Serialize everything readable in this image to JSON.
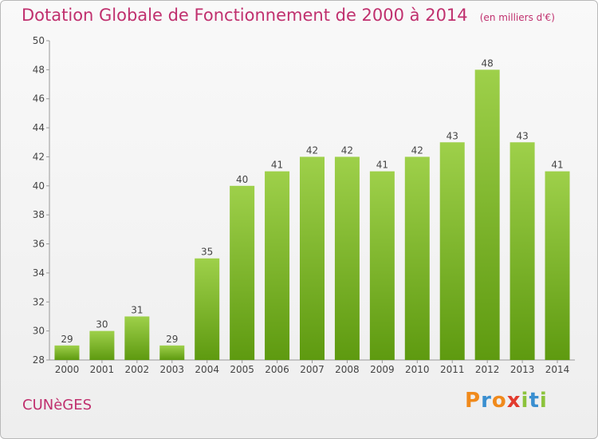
{
  "chart_data": {
    "type": "bar",
    "title": "Dotation Globale de Fonctionnement de 2000 à 2014",
    "unit": "(en milliers d'€)",
    "categories": [
      "2000",
      "2001",
      "2002",
      "2003",
      "2004",
      "2005",
      "2006",
      "2007",
      "2008",
      "2009",
      "2010",
      "2011",
      "2012",
      "2013",
      "2014"
    ],
    "values": [
      29,
      30,
      31,
      29,
      35,
      40,
      41,
      42,
      42,
      41,
      42,
      43,
      48,
      43,
      41
    ],
    "ylim": [
      28,
      50
    ],
    "yticks": [
      28,
      30,
      32,
      34,
      36,
      38,
      40,
      42,
      44,
      46,
      48,
      50
    ],
    "grid": false,
    "bar_color_top": "#9ed04a",
    "bar_color_bottom": "#5e9a10"
  },
  "town_name": "CUNèGES",
  "logo": {
    "p": "P",
    "r": "r",
    "o": "o",
    "x": "x",
    "i1": "i",
    "t": "t",
    "i2": "i"
  }
}
